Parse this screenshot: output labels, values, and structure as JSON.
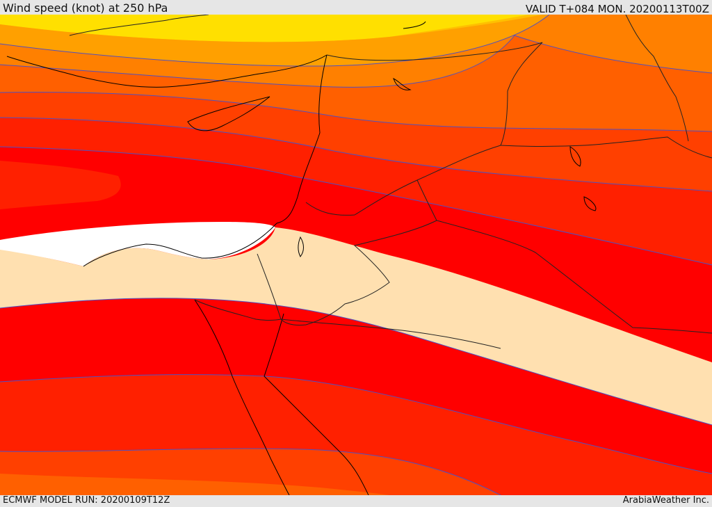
{
  "header": {
    "title": "Wind speed (knot) at 250 hPa",
    "valid": "VALID T+084 MON. 20200113T00Z"
  },
  "footer": {
    "model_run": "ECMWF MODEL RUN: 20200109T12Z",
    "credit": "ArabiaWeather Inc."
  },
  "colors": {
    "band_yellow": "#ffe000",
    "band_gold": "#ffc000",
    "band_amber": "#ffa000",
    "band_orange": "#ff8000",
    "band_deep_orange": "#ff6000",
    "band_red_orange": "#ff4000",
    "band_red": "#ff2000",
    "band_pure_red": "#ff0000",
    "band_white": "#ffffff",
    "band_wheat": "#ffe0b0",
    "contour_line": "#5050c0",
    "coast_line": "#000000",
    "border_line": "#222222"
  }
}
